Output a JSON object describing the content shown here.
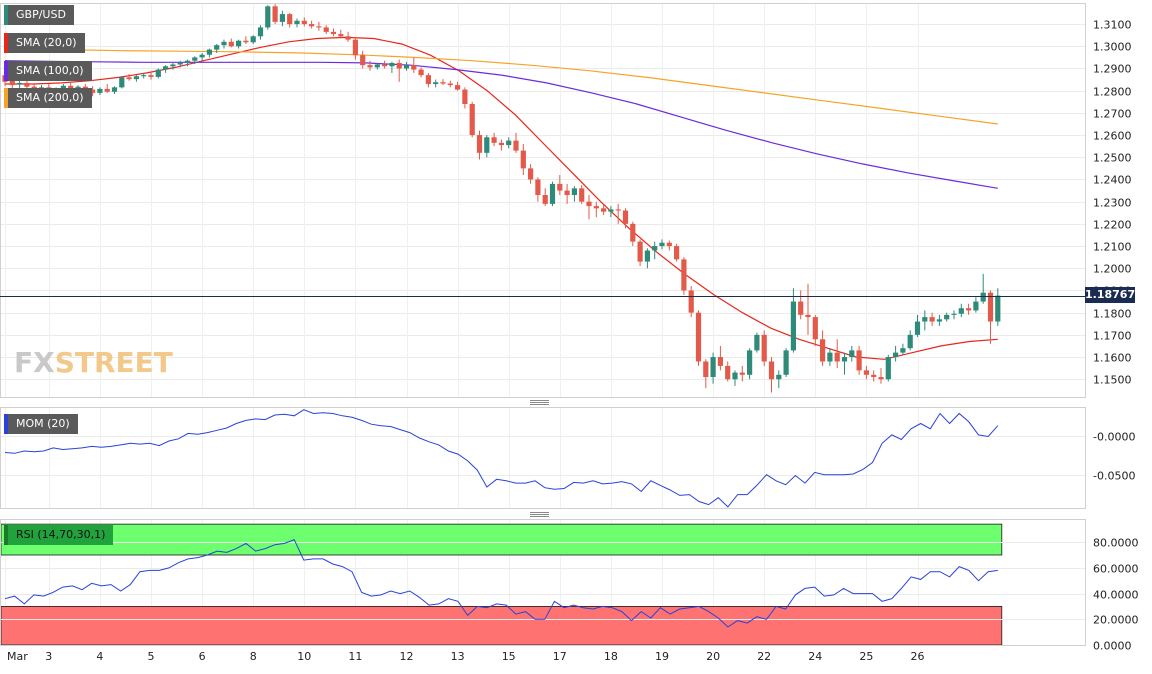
{
  "colors": {
    "bull": "#2e8b7a",
    "bear": "#e35a4a",
    "sma20": "#e8261b",
    "sma100": "#6a2be0",
    "sma200": "#f5a42a",
    "mom": "#2a42d8",
    "rsi": "#2a42d8",
    "overbought_zone": "#6dff6d",
    "oversold_zone": "#ff7272",
    "price_line": "#1b2c52"
  },
  "logo": {
    "a": "FX",
    "b": "STREET"
  },
  "chart_data": [
    {
      "panel": "main",
      "type": "candlestick",
      "symbol": "GBP/USD",
      "last_price": "1.18767",
      "ylim": [
        1.142,
        1.3195
      ],
      "yticks": [
        "1.3100",
        "1.3000",
        "1.2900",
        "1.2800",
        "1.2700",
        "1.2600",
        "1.2500",
        "1.2400",
        "1.2300",
        "1.2200",
        "1.2100",
        "1.2000",
        "1.1900",
        "1.1800",
        "1.1700",
        "1.1600",
        "1.1500"
      ],
      "ytick_values": [
        1.31,
        1.3,
        1.29,
        1.28,
        1.27,
        1.26,
        1.25,
        1.24,
        1.23,
        1.22,
        1.21,
        1.2,
        1.19,
        1.18,
        1.17,
        1.16,
        1.15
      ],
      "x_labels": [
        "Mar",
        "3",
        "4",
        "5",
        "6",
        "8",
        "10",
        "11",
        "12",
        "13",
        "15",
        "17",
        "18",
        "19",
        "20",
        "22",
        "24",
        "25",
        "26"
      ],
      "x_label_index": [
        0,
        6,
        13,
        20,
        27,
        34,
        41,
        48,
        55,
        62,
        69,
        76,
        83,
        90,
        97,
        104,
        111,
        118,
        125
      ],
      "ohlc": [
        [
          1.287,
          1.289,
          1.282,
          1.284
        ],
        [
          1.2845,
          1.286,
          1.281,
          1.2825
        ],
        [
          1.2828,
          1.2845,
          1.28,
          1.2835
        ],
        [
          1.2835,
          1.285,
          1.281,
          1.2818
        ],
        [
          1.2818,
          1.283,
          1.279,
          1.2805
        ],
        [
          1.2805,
          1.2825,
          1.279,
          1.2815
        ],
        [
          1.2815,
          1.283,
          1.2795,
          1.28
        ],
        [
          1.28,
          1.2815,
          1.2785,
          1.2808
        ],
        [
          1.2808,
          1.283,
          1.28,
          1.2822
        ],
        [
          1.2822,
          1.2835,
          1.2805,
          1.2812
        ],
        [
          1.2812,
          1.2825,
          1.2795,
          1.2818
        ],
        [
          1.2818,
          1.283,
          1.28,
          1.2805
        ],
        [
          1.2805,
          1.282,
          1.2775,
          1.279
        ],
        [
          1.279,
          1.2815,
          1.278,
          1.2808
        ],
        [
          1.2808,
          1.283,
          1.279,
          1.2795
        ],
        [
          1.2795,
          1.282,
          1.2785,
          1.2815
        ],
        [
          1.2815,
          1.2865,
          1.281,
          1.286
        ],
        [
          1.286,
          1.2875,
          1.2845,
          1.2852
        ],
        [
          1.2852,
          1.287,
          1.284,
          1.2865
        ],
        [
          1.2865,
          1.288,
          1.2855,
          1.287
        ],
        [
          1.287,
          1.2885,
          1.285,
          1.2862
        ],
        [
          1.2862,
          1.29,
          1.2855,
          1.2895
        ],
        [
          1.2895,
          1.2915,
          1.288,
          1.291
        ],
        [
          1.291,
          1.2925,
          1.2895,
          1.2918
        ],
        [
          1.2918,
          1.2935,
          1.2905,
          1.2925
        ],
        [
          1.2925,
          1.294,
          1.291,
          1.2935
        ],
        [
          1.2935,
          1.2955,
          1.292,
          1.295
        ],
        [
          1.295,
          1.297,
          1.2935,
          1.2962
        ],
        [
          1.2962,
          1.299,
          1.295,
          1.2985
        ],
        [
          1.2985,
          1.301,
          1.297,
          1.3005
        ],
        [
          1.3005,
          1.303,
          1.299,
          1.302
        ],
        [
          1.302,
          1.3035,
          1.2995,
          1.3
        ],
        [
          1.3,
          1.303,
          1.299,
          1.3025
        ],
        [
          1.3025,
          1.3045,
          1.301,
          1.3018
        ],
        [
          1.3018,
          1.305,
          1.301,
          1.3045
        ],
        [
          1.3045,
          1.3095,
          1.303,
          1.3085
        ],
        [
          1.3085,
          1.3185,
          1.3075,
          1.318
        ],
        [
          1.318,
          1.319,
          1.31,
          1.311
        ],
        [
          1.311,
          1.316,
          1.309,
          1.3145
        ],
        [
          1.3145,
          1.315,
          1.3085,
          1.31
        ],
        [
          1.31,
          1.3125,
          1.3085,
          1.3115
        ],
        [
          1.3115,
          1.313,
          1.309,
          1.31
        ],
        [
          1.31,
          1.3115,
          1.308,
          1.309
        ],
        [
          1.309,
          1.311,
          1.307,
          1.3085
        ],
        [
          1.3085,
          1.3095,
          1.3055,
          1.3065
        ],
        [
          1.3065,
          1.308,
          1.3045,
          1.3055
        ],
        [
          1.3055,
          1.3075,
          1.3035,
          1.3045
        ],
        [
          1.3045,
          1.3065,
          1.302,
          1.303
        ],
        [
          1.303,
          1.304,
          1.294,
          1.296
        ],
        [
          1.296,
          1.298,
          1.29,
          1.2915
        ],
        [
          1.2915,
          1.2935,
          1.289,
          1.2905
        ],
        [
          1.2905,
          1.2925,
          1.2895,
          1.2918
        ],
        [
          1.2918,
          1.2935,
          1.29,
          1.291
        ],
        [
          1.291,
          1.293,
          1.288,
          1.2925
        ],
        [
          1.2925,
          1.294,
          1.284,
          1.29
        ],
        [
          1.29,
          1.293,
          1.289,
          1.2915
        ],
        [
          1.2915,
          1.295,
          1.288,
          1.2895
        ],
        [
          1.2895,
          1.2905,
          1.286,
          1.287
        ],
        [
          1.287,
          1.288,
          1.2815,
          1.283
        ],
        [
          1.283,
          1.285,
          1.2815,
          1.2838
        ],
        [
          1.2838,
          1.2852,
          1.2825,
          1.2832
        ],
        [
          1.2832,
          1.2845,
          1.2815,
          1.2825
        ],
        [
          1.2825,
          1.284,
          1.28,
          1.2805
        ],
        [
          1.2805,
          1.2815,
          1.272,
          1.274
        ],
        [
          1.274,
          1.275,
          1.259,
          1.26
        ],
        [
          1.26,
          1.262,
          1.249,
          1.252
        ],
        [
          1.252,
          1.26,
          1.25,
          1.259
        ],
        [
          1.259,
          1.261,
          1.255,
          1.2565
        ],
        [
          1.2565,
          1.258,
          1.253,
          1.2555
        ],
        [
          1.2555,
          1.259,
          1.254,
          1.2575
        ],
        [
          1.2575,
          1.261,
          1.252,
          1.253
        ],
        [
          1.253,
          1.256,
          1.242,
          1.245
        ],
        [
          1.245,
          1.247,
          1.238,
          1.24
        ],
        [
          1.24,
          1.241,
          1.23,
          1.233
        ],
        [
          1.233,
          1.236,
          1.228,
          1.229
        ],
        [
          1.229,
          1.239,
          1.228,
          1.238
        ],
        [
          1.238,
          1.242,
          1.233,
          1.235
        ],
        [
          1.235,
          1.238,
          1.229,
          1.233
        ],
        [
          1.233,
          1.237,
          1.23,
          1.236
        ],
        [
          1.236,
          1.2375,
          1.229,
          1.23
        ],
        [
          1.23,
          1.233,
          1.222,
          1.228
        ],
        [
          1.228,
          1.23,
          1.223,
          1.227
        ],
        [
          1.227,
          1.2285,
          1.224,
          1.2255
        ],
        [
          1.2255,
          1.228,
          1.223,
          1.2265
        ],
        [
          1.2265,
          1.229,
          1.22,
          1.226
        ],
        [
          1.226,
          1.227,
          1.218,
          1.22
        ],
        [
          1.22,
          1.221,
          1.21,
          1.212
        ],
        [
          1.212,
          1.213,
          1.201,
          1.203
        ],
        [
          1.203,
          1.209,
          1.2,
          1.208
        ],
        [
          1.208,
          1.212,
          1.204,
          1.21
        ],
        [
          1.21,
          1.213,
          1.2085,
          1.2115
        ],
        [
          1.2115,
          1.2125,
          1.208,
          1.21
        ],
        [
          1.21,
          1.211,
          1.203,
          1.204
        ],
        [
          1.204,
          1.205,
          1.188,
          1.19
        ],
        [
          1.19,
          1.192,
          1.178,
          1.18
        ],
        [
          1.18,
          1.181,
          1.156,
          1.158
        ],
        [
          1.158,
          1.159,
          1.146,
          1.151
        ],
        [
          1.151,
          1.162,
          1.148,
          1.16
        ],
        [
          1.16,
          1.165,
          1.154,
          1.156
        ],
        [
          1.156,
          1.158,
          1.149,
          1.15
        ],
        [
          1.15,
          1.154,
          1.147,
          1.153
        ],
        [
          1.153,
          1.156,
          1.149,
          1.152
        ],
        [
          1.152,
          1.164,
          1.15,
          1.163
        ],
        [
          1.163,
          1.171,
          1.162,
          1.17
        ],
        [
          1.17,
          1.172,
          1.156,
          1.158
        ],
        [
          1.158,
          1.16,
          1.144,
          1.15
        ],
        [
          1.15,
          1.154,
          1.146,
          1.152
        ],
        [
          1.152,
          1.164,
          1.151,
          1.163
        ],
        [
          1.163,
          1.191,
          1.162,
          1.185
        ],
        [
          1.185,
          1.19,
          1.177,
          1.179
        ],
        [
          1.179,
          1.193,
          1.17,
          1.178
        ],
        [
          1.178,
          1.179,
          1.165,
          1.168
        ],
        [
          1.168,
          1.172,
          1.156,
          1.158
        ],
        [
          1.158,
          1.164,
          1.156,
          1.162
        ],
        [
          1.162,
          1.168,
          1.155,
          1.158
        ],
        [
          1.158,
          1.162,
          1.152,
          1.16
        ],
        [
          1.16,
          1.165,
          1.158,
          1.163
        ],
        [
          1.163,
          1.165,
          1.152,
          1.154
        ],
        [
          1.154,
          1.156,
          1.15,
          1.152
        ],
        [
          1.152,
          1.154,
          1.149,
          1.151
        ],
        [
          1.151,
          1.155,
          1.148,
          1.15
        ],
        [
          1.15,
          1.161,
          1.149,
          1.16
        ],
        [
          1.16,
          1.165,
          1.158,
          1.162
        ],
        [
          1.162,
          1.166,
          1.161,
          1.164
        ],
        [
          1.164,
          1.172,
          1.163,
          1.17
        ],
        [
          1.17,
          1.179,
          1.169,
          1.176
        ],
        [
          1.176,
          1.181,
          1.172,
          1.178
        ],
        [
          1.178,
          1.18,
          1.174,
          1.176
        ],
        [
          1.176,
          1.179,
          1.174,
          1.177
        ],
        [
          1.177,
          1.18,
          1.176,
          1.179
        ],
        [
          1.179,
          1.181,
          1.177,
          1.1795
        ],
        [
          1.1795,
          1.184,
          1.178,
          1.182
        ],
        [
          1.182,
          1.184,
          1.179,
          1.181
        ],
        [
          1.181,
          1.187,
          1.18,
          1.185
        ],
        [
          1.185,
          1.1975,
          1.184,
          1.189
        ],
        [
          1.189,
          1.19,
          1.166,
          1.176
        ],
        [
          1.176,
          1.191,
          1.174,
          1.18767
        ]
      ],
      "sma": [
        {
          "label": "SMA (20,0)",
          "values": [
            1.283,
            1.283,
            1.2835,
            1.2845,
            1.286,
            1.288,
            1.2905,
            1.2935,
            1.2965,
            1.2995,
            1.302,
            1.3035,
            1.304,
            1.3035,
            1.301,
            1.296,
            1.289,
            1.28,
            1.269,
            1.256,
            1.243,
            1.23,
            1.218,
            1.207,
            1.197,
            1.188,
            1.18,
            1.173,
            1.168,
            1.164,
            1.16,
            1.159,
            1.162,
            1.165,
            1.167,
            1.168
          ]
        },
        {
          "label": "SMA (100,0)",
          "values": [
            1.2935,
            1.2932,
            1.293,
            1.2928,
            1.2928,
            1.2928,
            1.2928,
            1.2928,
            1.2925,
            1.2915,
            1.2895,
            1.287,
            1.2835,
            1.279,
            1.274,
            1.268,
            1.262,
            1.2565,
            1.2515,
            1.247,
            1.243,
            1.2395,
            1.236
          ]
        },
        {
          "label": "SMA (200,0)",
          "values": [
            1.299,
            1.2985,
            1.298,
            1.2978,
            1.2975,
            1.297,
            1.2962,
            1.295,
            1.2935,
            1.2915,
            1.289,
            1.286,
            1.2825,
            1.279,
            1.2755,
            1.272,
            1.2685,
            1.265
          ]
        }
      ]
    },
    {
      "panel": "momentum",
      "type": "line",
      "label": "MOM (20)",
      "yticks": [
        "-0.0000",
        "-0.0500"
      ],
      "ytick_values": [
        0.0,
        -0.05
      ],
      "ylim": [
        -0.0935,
        0.0385
      ],
      "values": [
        -0.021,
        -0.022,
        -0.019,
        -0.02,
        -0.019,
        -0.015,
        -0.017,
        -0.016,
        -0.015,
        -0.013,
        -0.014,
        -0.013,
        -0.011,
        -0.009,
        -0.01,
        -0.009,
        -0.012,
        -0.006,
        -0.003,
        0.004,
        0.003,
        0.005,
        0.008,
        0.011,
        0.017,
        0.021,
        0.023,
        0.022,
        0.028,
        0.029,
        0.027,
        0.035,
        0.03,
        0.031,
        0.03,
        0.027,
        0.025,
        0.021,
        0.016,
        0.014,
        0.013,
        0.009,
        0.005,
        -0.002,
        -0.007,
        -0.011,
        -0.019,
        -0.023,
        -0.032,
        -0.044,
        -0.066,
        -0.056,
        -0.058,
        -0.061,
        -0.061,
        -0.058,
        -0.067,
        -0.069,
        -0.068,
        -0.06,
        -0.061,
        -0.058,
        -0.062,
        -0.061,
        -0.059,
        -0.062,
        -0.072,
        -0.058,
        -0.064,
        -0.07,
        -0.077,
        -0.076,
        -0.085,
        -0.089,
        -0.08,
        -0.092,
        -0.076,
        -0.076,
        -0.064,
        -0.05,
        -0.058,
        -0.063,
        -0.051,
        -0.061,
        -0.047,
        -0.05,
        -0.05,
        -0.05,
        -0.049,
        -0.043,
        -0.034,
        -0.009,
        0.002,
        -0.004,
        0.01,
        0.017,
        0.01,
        0.03,
        0.017,
        0.03,
        0.019,
        0.002,
        0.0,
        0.014
      ]
    },
    {
      "panel": "rsi",
      "type": "line",
      "label": "RSI (14,70,30,1)",
      "yticks": [
        "80.0000",
        "60.0000",
        "40.0000",
        "20.0000",
        "0.0000"
      ],
      "ytick_values": [
        80,
        60,
        40,
        20,
        0
      ],
      "ylim": [
        0,
        98
      ],
      "overbought": 70,
      "oversold": 30,
      "values": [
        36,
        38,
        32,
        39,
        38,
        41,
        45,
        46,
        43,
        48,
        46,
        47,
        42,
        47,
        57,
        58,
        58,
        60,
        64,
        67,
        68,
        70,
        73,
        72,
        75,
        79,
        73,
        75,
        78,
        79,
        82,
        66,
        67,
        67,
        63,
        61,
        57,
        41,
        38,
        39,
        42,
        40,
        42,
        37,
        31,
        32,
        36,
        34,
        23,
        30,
        29,
        32,
        31,
        24,
        26,
        20,
        20,
        34,
        29,
        31,
        29,
        28,
        30,
        29,
        26,
        19,
        26,
        21,
        29,
        24,
        28,
        29,
        30,
        26,
        21,
        14,
        19,
        17,
        22,
        20,
        30,
        28,
        39,
        44,
        45,
        38,
        39,
        44,
        40,
        40,
        40,
        34,
        36,
        44,
        53,
        51,
        57,
        57,
        53,
        61,
        58,
        50,
        57,
        58
      ]
    }
  ]
}
